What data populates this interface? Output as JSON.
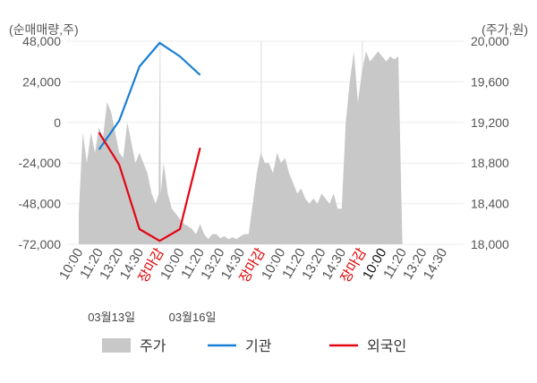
{
  "chart_data": {
    "type": "line",
    "left_unit": "(순매매량,주)",
    "right_unit": "(주가,원)",
    "left_ticks": [
      "48,000",
      "24,000",
      "0",
      "-24,000",
      "-48,000",
      "-72,000"
    ],
    "left_tick_values": [
      48000,
      24000,
      0,
      -24000,
      -48000,
      -72000
    ],
    "left_range": [
      -72000,
      48000
    ],
    "right_ticks": [
      "20,000",
      "19,600",
      "19,200",
      "18,800",
      "18,400",
      "18,000"
    ],
    "right_tick_values": [
      20000,
      19600,
      19200,
      18800,
      18400,
      18000
    ],
    "right_range": [
      18000,
      20000
    ],
    "x_ticks": [
      {
        "label": "10:00",
        "color": "#555555"
      },
      {
        "label": "11:20",
        "color": "#555555"
      },
      {
        "label": "13:20",
        "color": "#555555"
      },
      {
        "label": "14:30",
        "color": "#555555"
      },
      {
        "label": "장마감",
        "color": "#e00000"
      },
      {
        "label": "10:00",
        "color": "#555555"
      },
      {
        "label": "11:20",
        "color": "#555555"
      },
      {
        "label": "13:20",
        "color": "#555555"
      },
      {
        "label": "14:30",
        "color": "#555555"
      },
      {
        "label": "장마감",
        "color": "#e00000"
      },
      {
        "label": "10:00",
        "color": "#555555"
      },
      {
        "label": "11:20",
        "color": "#555555"
      },
      {
        "label": "13:20",
        "color": "#555555"
      },
      {
        "label": "14:30",
        "color": "#555555"
      },
      {
        "label": "장마감",
        "color": "#e00000"
      },
      {
        "label": "10:00",
        "color": "#111111"
      },
      {
        "label": "11:20",
        "color": "#555555"
      },
      {
        "label": "13:20",
        "color": "#555555"
      },
      {
        "label": "14:30",
        "color": "#555555"
      }
    ],
    "dates": [
      {
        "label": "03월13일",
        "tick_index": 2
      },
      {
        "label": "03월16일",
        "tick_index": 6
      }
    ],
    "session_separators_after_tick": [
      4,
      9,
      14
    ],
    "price_series": {
      "name": "주가",
      "color": "#c8c8c8",
      "x": [
        0,
        0.2,
        0.4,
        0.6,
        0.8,
        1.0,
        1.2,
        1.4,
        1.6,
        1.8,
        2.0,
        2.2,
        2.4,
        2.6,
        2.8,
        3.0,
        3.2,
        3.4,
        3.6,
        3.8,
        3.95,
        4.0,
        4.05,
        4.2,
        4.4,
        4.6,
        4.8,
        5.0,
        5.2,
        5.4,
        5.6,
        5.8,
        6.0,
        6.2,
        6.4,
        6.6,
        6.8,
        7.0,
        7.2,
        7.4,
        7.6,
        7.8,
        8.0,
        8.2,
        8.4,
        8.6,
        8.8,
        9.0,
        9.2,
        9.4,
        9.6,
        9.8,
        10.0,
        10.2,
        10.4,
        10.6,
        10.8,
        11.0,
        11.2,
        11.4,
        11.6,
        11.8,
        12.0,
        12.2,
        12.4,
        12.6,
        12.8,
        13.0,
        13.2,
        13.4,
        13.6,
        13.8,
        14.0,
        14.2,
        14.4,
        14.6,
        14.8,
        15.0,
        15.2,
        15.4,
        15.6,
        15.8,
        16.0
      ],
      "values": [
        18300,
        19100,
        18800,
        19100,
        18900,
        19150,
        19050,
        19400,
        19300,
        19100,
        18900,
        18850,
        19200,
        19000,
        18800,
        18900,
        18800,
        18700,
        18500,
        18400,
        18500,
        19800,
        18500,
        18800,
        18500,
        18350,
        18300,
        18250,
        18200,
        18180,
        18150,
        18100,
        18200,
        18100,
        18050,
        18100,
        18100,
        18060,
        18080,
        18050,
        18070,
        18050,
        18080,
        18100,
        18100,
        18400,
        18700,
        18900,
        18800,
        18800,
        18700,
        18900,
        18800,
        18850,
        18700,
        18600,
        18500,
        18550,
        18450,
        18400,
        18450,
        18400,
        18500,
        18450,
        18400,
        18500,
        18350,
        18350,
        19200,
        19600,
        19900,
        19400,
        19700,
        19900,
        19800,
        19850,
        19900,
        19850,
        19800,
        19850,
        19820,
        19850,
        18000
      ]
    },
    "series": [
      {
        "name": "기관",
        "color": "#1a7fd4",
        "x": [
          1.0,
          2.0,
          3.0,
          4.0,
          5.0,
          6.0
        ],
        "values": [
          -16000,
          1000,
          33000,
          47000,
          39000,
          28000
        ]
      },
      {
        "name": "외국인",
        "color": "#e30613",
        "x": [
          1.0,
          2.0,
          3.0,
          4.0,
          5.0,
          6.0
        ],
        "values": [
          -6000,
          -25000,
          -63000,
          -70000,
          -63000,
          -15000
        ]
      }
    ],
    "legend": [
      {
        "name": "주가",
        "type": "box",
        "color": "#c8c8c8"
      },
      {
        "name": "기관",
        "type": "line",
        "color": "#1a7fd4"
      },
      {
        "name": "외국인",
        "type": "line",
        "color": "#e30613"
      }
    ],
    "legend_position": "bottom"
  }
}
